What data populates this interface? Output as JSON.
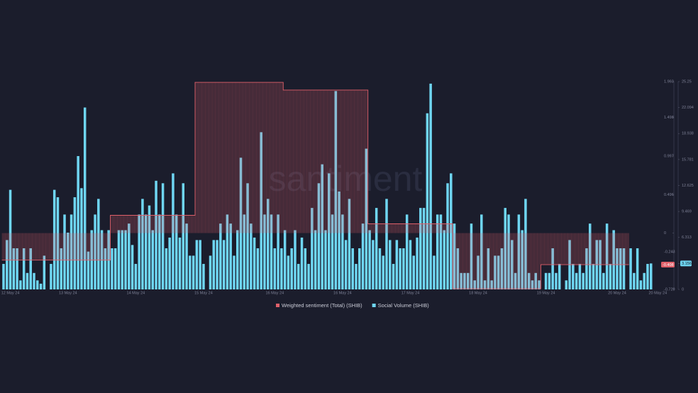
{
  "chart_data": {
    "type": "combo",
    "watermark": "santiment",
    "xlim": [
      0,
      193
    ],
    "xticks": [
      {
        "value": 2,
        "label": "12 May 24"
      },
      {
        "value": 19,
        "label": "13 May 24"
      },
      {
        "value": 39,
        "label": "14 May 24"
      },
      {
        "value": 59,
        "label": "15 May 24"
      },
      {
        "value": 80,
        "label": "16 May 24"
      },
      {
        "value": 100,
        "label": "16 May 24"
      },
      {
        "value": 120,
        "label": "17 May 24"
      },
      {
        "value": 140,
        "label": "18 May 24"
      },
      {
        "value": 160,
        "label": "19 May 24"
      },
      {
        "value": 181,
        "label": "20 May 24"
      },
      {
        "value": 193,
        "label": "20 May 24"
      }
    ],
    "ylim": [
      -0.729,
      1.96
    ],
    "yticks": [
      {
        "value": 1.96,
        "label": "1.960"
      },
      1.498,
      0.997,
      0.496,
      0,
      -0.243,
      -0.729
    ],
    "y2lim": [
      0,
      25.25
    ],
    "y2ticks": [
      25.25,
      22.094,
      18.938,
      15.781,
      12.625,
      9.469,
      6.313,
      3.156,
      0
    ],
    "series": [
      {
        "name": "Weighted sentiment (Total) (SHIB)",
        "type": "area",
        "color": "#e0606a",
        "axis": "y",
        "values": [
          -0.35,
          -0.35,
          -0.35,
          -0.35,
          -0.35,
          -0.35,
          -0.35,
          -0.35,
          -0.35,
          -0.35,
          -0.35,
          -0.35,
          -0.35,
          -0.35,
          -0.35,
          -0.35,
          -0.35,
          -0.35,
          -0.35,
          -0.35,
          -0.35,
          -0.35,
          -0.35,
          -0.35,
          -0.35,
          -0.35,
          -0.35,
          -0.35,
          -0.35,
          -0.35,
          -0.35,
          -0.35,
          0.23,
          0.23,
          0.23,
          0.23,
          0.23,
          0.23,
          0.23,
          0.23,
          0.23,
          0.23,
          0.23,
          0.23,
          0.23,
          0.23,
          0.23,
          0.23,
          0.23,
          0.23,
          0.23,
          0.23,
          0.23,
          0.23,
          0.23,
          0.23,
          0.23,
          1.95,
          1.95,
          1.95,
          1.95,
          1.95,
          1.95,
          1.95,
          1.95,
          1.95,
          1.95,
          1.95,
          1.95,
          1.95,
          1.95,
          1.95,
          1.95,
          1.95,
          1.95,
          1.95,
          1.95,
          1.95,
          1.95,
          1.95,
          1.95,
          1.95,
          1.95,
          1.85,
          1.85,
          1.85,
          1.85,
          1.85,
          1.85,
          1.85,
          1.85,
          1.85,
          1.85,
          1.85,
          1.85,
          1.85,
          1.85,
          1.85,
          1.85,
          1.85,
          1.85,
          1.85,
          1.85,
          1.85,
          1.85,
          1.85,
          1.85,
          1.85,
          0.12,
          0.12,
          0.12,
          0.12,
          0.12,
          0.12,
          0.12,
          0.12,
          0.12,
          0.12,
          0.12,
          0.12,
          0.12,
          0.12,
          0.12,
          0.12,
          0.12,
          0.12,
          0.12,
          0.12,
          0.12,
          0.12,
          0.12,
          0.12,
          0.12,
          -0.72,
          -0.72,
          -0.72,
          -0.72,
          -0.72,
          -0.72,
          -0.72,
          -0.72,
          -0.72,
          -0.72,
          -0.72,
          -0.72,
          -0.72,
          -0.72,
          -0.72,
          -0.72,
          -0.72,
          -0.72,
          -0.72,
          -0.72,
          -0.72,
          -0.72,
          -0.72,
          -0.72,
          -0.72,
          -0.72,
          -0.408,
          -0.408,
          -0.408,
          -0.408,
          -0.408,
          -0.408,
          -0.408,
          -0.408,
          -0.408,
          -0.408,
          -0.408,
          -0.408,
          -0.408,
          -0.408,
          -0.408,
          -0.408,
          -0.408,
          -0.408,
          -0.408,
          -0.408,
          -0.408,
          -0.408,
          -0.408,
          -0.408,
          -0.408,
          -0.408,
          null,
          null,
          null,
          null,
          null,
          null,
          null
        ]
      },
      {
        "name": "Social Volume (SHIB)",
        "type": "bar",
        "color": "#6fd6f2",
        "axis": "y2",
        "values": [
          3.1,
          6.0,
          12.1,
          5.0,
          5.0,
          1.1,
          5.0,
          2.0,
          5.0,
          2.0,
          1.1,
          0.7,
          4.1,
          0,
          3.1,
          12.1,
          11.2,
          5.0,
          9.1,
          6.9,
          9.1,
          11.2,
          16.2,
          12.3,
          22.1,
          4.6,
          7.2,
          9.1,
          11.0,
          7.2,
          5.0,
          7.2,
          5.0,
          5.0,
          7.2,
          7.2,
          7.2,
          8.0,
          5.4,
          3.1,
          9.1,
          11.0,
          9.1,
          10.2,
          7.2,
          13.2,
          9.1,
          12.9,
          5.0,
          6.3,
          14.1,
          9.1,
          6.3,
          12.9,
          8.0,
          4.1,
          4.1,
          6.0,
          6.0,
          3.1,
          0,
          4.1,
          6.0,
          6.0,
          8.0,
          6.0,
          9.1,
          8.0,
          4.1,
          7.2,
          16.0,
          9.1,
          12.9,
          8.0,
          6.3,
          5.0,
          19.1,
          9.1,
          11.0,
          9.1,
          5.0,
          9.1,
          5.0,
          7.2,
          4.1,
          5.0,
          7.2,
          3.1,
          6.3,
          5.0,
          3.1,
          9.9,
          7.2,
          12.9,
          15.2,
          7.2,
          14.1,
          9.1,
          24.1,
          11.9,
          9.1,
          6.0,
          11.0,
          5.0,
          3.1,
          5.0,
          8.0,
          17.1,
          7.2,
          6.0,
          9.9,
          5.0,
          4.1,
          11.0,
          6.0,
          3.1,
          6.0,
          5.0,
          5.0,
          9.1,
          6.0,
          4.1,
          6.3,
          9.9,
          9.9,
          21.4,
          25.0,
          4.1,
          9.1,
          9.1,
          7.2,
          12.9,
          14.1,
          8.0,
          5.0,
          2.0,
          2.0,
          2.0,
          8.0,
          1.1,
          4.1,
          9.1,
          1.1,
          5.0,
          1.1,
          4.1,
          4.1,
          5.0,
          9.9,
          9.1,
          6.0,
          2.0,
          9.1,
          7.2,
          11.0,
          2.0,
          1.1,
          2.0,
          1.1,
          0,
          2.0,
          2.0,
          5.0,
          2.0,
          3.1,
          0,
          1.1,
          6.0,
          3.1,
          2.0,
          3.1,
          2.0,
          5.0,
          8.0,
          3.1,
          6.0,
          6.0,
          2.0,
          8.0,
          3.1,
          7.2,
          5.0,
          5.0,
          5.0,
          0,
          5.0,
          2.0,
          5.0,
          1.1,
          2.0,
          3.1,
          3.156
        ]
      }
    ]
  }
}
